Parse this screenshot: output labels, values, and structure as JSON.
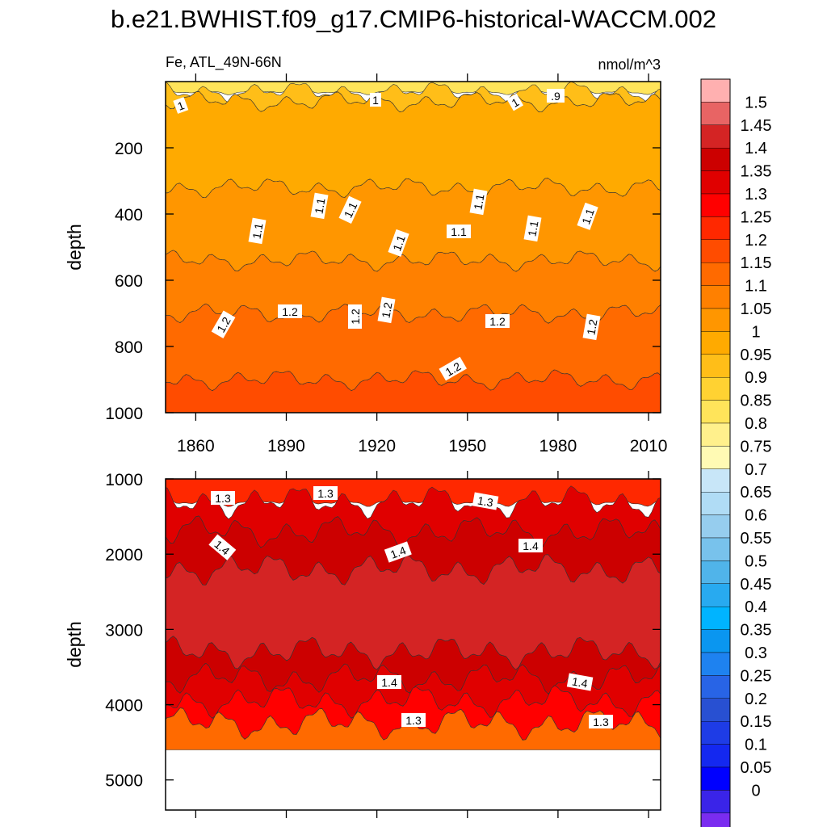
{
  "title": "b.e21.BWHIST.f09_g17.CMIP6-historical-WACCM.002",
  "chart_data": [
    {
      "type": "heatmap",
      "name": "upper-ocean depth-time section",
      "variable_label": "Fe, ATL_49N-66N",
      "units": "nmol/m^3",
      "xlabel": "",
      "ylabel": "depth",
      "xlim": [
        1850,
        2014
      ],
      "ylim": [
        1000,
        0
      ],
      "x_ticks": [
        "1860",
        "1890",
        "1920",
        "1950",
        "1980",
        "2010"
      ],
      "y_ticks": [
        "200",
        "400",
        "600",
        "800",
        "1000"
      ],
      "contour_bands_approx": [
        {
          "depth_top": 0,
          "depth_bottom": 30,
          "value_range": [
            0.75,
            0.95
          ]
        },
        {
          "depth_top": 30,
          "depth_bottom": 60,
          "value_range": [
            0.95,
            1.0
          ]
        },
        {
          "depth_top": 60,
          "depth_bottom": 320,
          "value_range": [
            1.0,
            1.05
          ]
        },
        {
          "depth_top": 320,
          "depth_bottom": 540,
          "value_range": [
            1.05,
            1.1
          ]
        },
        {
          "depth_top": 540,
          "depth_bottom": 700,
          "value_range": [
            1.1,
            1.15
          ]
        },
        {
          "depth_top": 700,
          "depth_bottom": 900,
          "value_range": [
            1.15,
            1.2
          ]
        },
        {
          "depth_top": 900,
          "depth_bottom": 1000,
          "value_range": [
            1.2,
            1.25
          ]
        }
      ],
      "contour_labels": [
        "1",
        "1",
        "1",
        ".9",
        "1.1",
        "1.1",
        "1.1",
        "1.1",
        "1.1",
        "1.1",
        "1.1",
        "1.1",
        "1.2",
        "1.2",
        "1.2",
        "1.2",
        "1.2",
        "1.2",
        "1.2"
      ]
    },
    {
      "type": "heatmap",
      "name": "deep-ocean depth-time section",
      "xlabel": "",
      "ylabel": "depth",
      "xlim": [
        1850,
        2014
      ],
      "ylim": [
        5400,
        1000
      ],
      "y_ticks": [
        "1000",
        "2000",
        "3000",
        "4000",
        "5000"
      ],
      "data_bottom_depth": 4600,
      "contour_bands_approx": [
        {
          "depth_top": 1000,
          "depth_bottom": 1300,
          "value_range": [
            1.25,
            1.3
          ]
        },
        {
          "depth_top": 1300,
          "depth_bottom": 1700,
          "value_range": [
            1.3,
            1.4
          ]
        },
        {
          "depth_top": 1700,
          "depth_bottom": 2200,
          "value_range": [
            1.4,
            1.45
          ]
        },
        {
          "depth_top": 2200,
          "depth_bottom": 3300,
          "value_range": [
            1.45,
            1.5
          ]
        },
        {
          "depth_top": 3300,
          "depth_bottom": 3650,
          "value_range": [
            1.4,
            1.45
          ]
        },
        {
          "depth_top": 3650,
          "depth_bottom": 3950,
          "value_range": [
            1.35,
            1.4
          ]
        },
        {
          "depth_top": 3950,
          "depth_bottom": 4250,
          "value_range": [
            1.25,
            1.35
          ]
        },
        {
          "depth_top": 4250,
          "depth_bottom": 4600,
          "value_range": [
            1.15,
            1.2
          ]
        }
      ],
      "contour_labels": [
        "1.3",
        "1.3",
        "1.3",
        "1.4",
        "1.4",
        "1.4",
        "1.4",
        "1.4",
        "1.3",
        "1.3"
      ]
    }
  ],
  "colorbar": {
    "labels": [
      "1.5",
      "1.45",
      "1.4",
      "1.35",
      "1.3",
      "1.25",
      "1.2",
      "1.15",
      "1.1",
      "1.05",
      "1",
      "0.95",
      "0.9",
      "0.85",
      "0.8",
      "0.75",
      "0.7",
      "0.65",
      "0.6",
      "0.55",
      "0.5",
      "0.45",
      "0.4",
      "0.35",
      "0.3",
      "0.25",
      "0.2",
      "0.15",
      "0.1",
      "0.05",
      "0"
    ],
    "colors_top_to_bottom": [
      "#ffb0b0",
      "#e86464",
      "#d42424",
      "#cc0000",
      "#e00000",
      "#ff0000",
      "#ff2800",
      "#ff4c00",
      "#ff6a00",
      "#ff8000",
      "#ff9600",
      "#ffaa00",
      "#ffbe18",
      "#ffd232",
      "#ffe45a",
      "#fff08c",
      "#fffab4",
      "#c8e6f8",
      "#b0dcf5",
      "#96cdee",
      "#78c2ec",
      "#50b4ea",
      "#28aaf0",
      "#00b4ff",
      "#0a96f0",
      "#1e82f0",
      "#2864e6",
      "#2850d2",
      "#1e3ce6",
      "#1428f0",
      "#0000ff",
      "#3a24e8",
      "#7a2cf0"
    ]
  }
}
